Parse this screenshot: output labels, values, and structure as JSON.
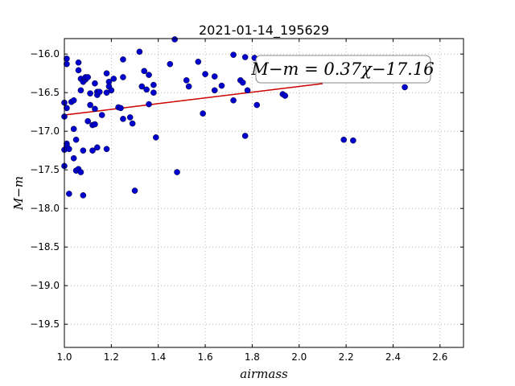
{
  "chart_data": {
    "type": "scatter",
    "title": "2021-01-14_195629",
    "xlabel": "airmass",
    "ylabel": "M−m",
    "xlim": [
      1.0,
      2.7
    ],
    "ylim": [
      -19.8,
      -15.8
    ],
    "y_inverted": true,
    "xticks": [
      1.0,
      1.2,
      1.4,
      1.6,
      1.8,
      2.0,
      2.2,
      2.4,
      2.6
    ],
    "xtick_labels": [
      "1.0",
      "1.2",
      "1.4",
      "1.6",
      "1.8",
      "2.0",
      "2.2",
      "2.4",
      "2.6"
    ],
    "yticks": [
      -16.0,
      -16.5,
      -17.0,
      -17.5,
      -18.0,
      -18.5,
      -19.0,
      -19.5
    ],
    "ytick_labels": [
      "−16.0",
      "−16.5",
      "−17.0",
      "−17.5",
      "−18.0",
      "−18.5",
      "−19.0",
      "−19.5"
    ],
    "grid": true,
    "annotation": "M−m = 0.37χ−17.16",
    "fit": {
      "slope": 0.37,
      "intercept": -17.16,
      "x_range": [
        1.0,
        2.1
      ],
      "color": "#cc0000"
    },
    "point_color": "#0000cc",
    "points": [
      {
        "x": 1.01,
        "y": -16.06
      },
      {
        "x": 1.01,
        "y": -16.13
      },
      {
        "x": 1.0,
        "y": -16.63
      },
      {
        "x": 1.01,
        "y": -16.7
      },
      {
        "x": 1.0,
        "y": -16.81
      },
      {
        "x": 1.01,
        "y": -17.16
      },
      {
        "x": 1.01,
        "y": -17.19
      },
      {
        "x": 1.0,
        "y": -17.24
      },
      {
        "x": 1.02,
        "y": -17.23
      },
      {
        "x": 1.0,
        "y": -17.45
      },
      {
        "x": 1.02,
        "y": -17.81
      },
      {
        "x": 1.03,
        "y": -16.62
      },
      {
        "x": 1.04,
        "y": -16.6
      },
      {
        "x": 1.04,
        "y": -16.97
      },
      {
        "x": 1.05,
        "y": -17.11
      },
      {
        "x": 1.04,
        "y": -17.35
      },
      {
        "x": 1.05,
        "y": -17.51
      },
      {
        "x": 1.06,
        "y": -17.49
      },
      {
        "x": 1.07,
        "y": -17.53
      },
      {
        "x": 1.06,
        "y": -16.11
      },
      {
        "x": 1.06,
        "y": -16.21
      },
      {
        "x": 1.07,
        "y": -16.32
      },
      {
        "x": 1.08,
        "y": -16.36
      },
      {
        "x": 1.07,
        "y": -16.47
      },
      {
        "x": 1.09,
        "y": -16.33
      },
      {
        "x": 1.09,
        "y": -16.3
      },
      {
        "x": 1.08,
        "y": -17.25
      },
      {
        "x": 1.08,
        "y": -17.83
      },
      {
        "x": 1.1,
        "y": -16.3
      },
      {
        "x": 1.11,
        "y": -16.51
      },
      {
        "x": 1.11,
        "y": -16.66
      },
      {
        "x": 1.1,
        "y": -16.87
      },
      {
        "x": 1.12,
        "y": -16.92
      },
      {
        "x": 1.13,
        "y": -16.91
      },
      {
        "x": 1.12,
        "y": -17.25
      },
      {
        "x": 1.14,
        "y": -17.21
      },
      {
        "x": 1.13,
        "y": -16.38
      },
      {
        "x": 1.14,
        "y": -16.49
      },
      {
        "x": 1.14,
        "y": -16.53
      },
      {
        "x": 1.15,
        "y": -16.49
      },
      {
        "x": 1.13,
        "y": -16.71
      },
      {
        "x": 1.16,
        "y": -16.79
      },
      {
        "x": 1.18,
        "y": -17.23
      },
      {
        "x": 1.18,
        "y": -16.25
      },
      {
        "x": 1.19,
        "y": -16.36
      },
      {
        "x": 1.19,
        "y": -16.42
      },
      {
        "x": 1.2,
        "y": -16.47
      },
      {
        "x": 1.18,
        "y": -16.5
      },
      {
        "x": 1.21,
        "y": -16.32
      },
      {
        "x": 1.23,
        "y": -16.69
      },
      {
        "x": 1.24,
        "y": -16.7
      },
      {
        "x": 1.25,
        "y": -16.84
      },
      {
        "x": 1.25,
        "y": -16.07
      },
      {
        "x": 1.25,
        "y": -16.3
      },
      {
        "x": 1.28,
        "y": -16.82
      },
      {
        "x": 1.29,
        "y": -16.9
      },
      {
        "x": 1.3,
        "y": -17.77
      },
      {
        "x": 1.32,
        "y": -15.97
      },
      {
        "x": 1.33,
        "y": -16.42
      },
      {
        "x": 1.34,
        "y": -16.22
      },
      {
        "x": 1.36,
        "y": -16.27
      },
      {
        "x": 1.35,
        "y": -16.46
      },
      {
        "x": 1.38,
        "y": -16.5
      },
      {
        "x": 1.36,
        "y": -16.65
      },
      {
        "x": 1.38,
        "y": -16.4
      },
      {
        "x": 1.39,
        "y": -17.08
      },
      {
        "x": 1.45,
        "y": -16.13
      },
      {
        "x": 1.47,
        "y": -15.81
      },
      {
        "x": 1.48,
        "y": -17.53
      },
      {
        "x": 1.52,
        "y": -16.34
      },
      {
        "x": 1.53,
        "y": -16.42
      },
      {
        "x": 1.57,
        "y": -16.1
      },
      {
        "x": 1.59,
        "y": -16.77
      },
      {
        "x": 1.6,
        "y": -16.26
      },
      {
        "x": 1.64,
        "y": -16.29
      },
      {
        "x": 1.64,
        "y": -16.47
      },
      {
        "x": 1.67,
        "y": -16.41
      },
      {
        "x": 1.72,
        "y": -16.01
      },
      {
        "x": 1.72,
        "y": -16.6
      },
      {
        "x": 1.75,
        "y": -16.34
      },
      {
        "x": 1.76,
        "y": -16.37
      },
      {
        "x": 1.77,
        "y": -16.04
      },
      {
        "x": 1.77,
        "y": -17.06
      },
      {
        "x": 1.78,
        "y": -16.47
      },
      {
        "x": 1.81,
        "y": -16.05
      },
      {
        "x": 1.82,
        "y": -16.66
      },
      {
        "x": 1.93,
        "y": -16.52
      },
      {
        "x": 1.94,
        "y": -16.54
      },
      {
        "x": 2.19,
        "y": -17.11
      },
      {
        "x": 2.23,
        "y": -17.12
      },
      {
        "x": 2.45,
        "y": -16.43
      }
    ]
  }
}
